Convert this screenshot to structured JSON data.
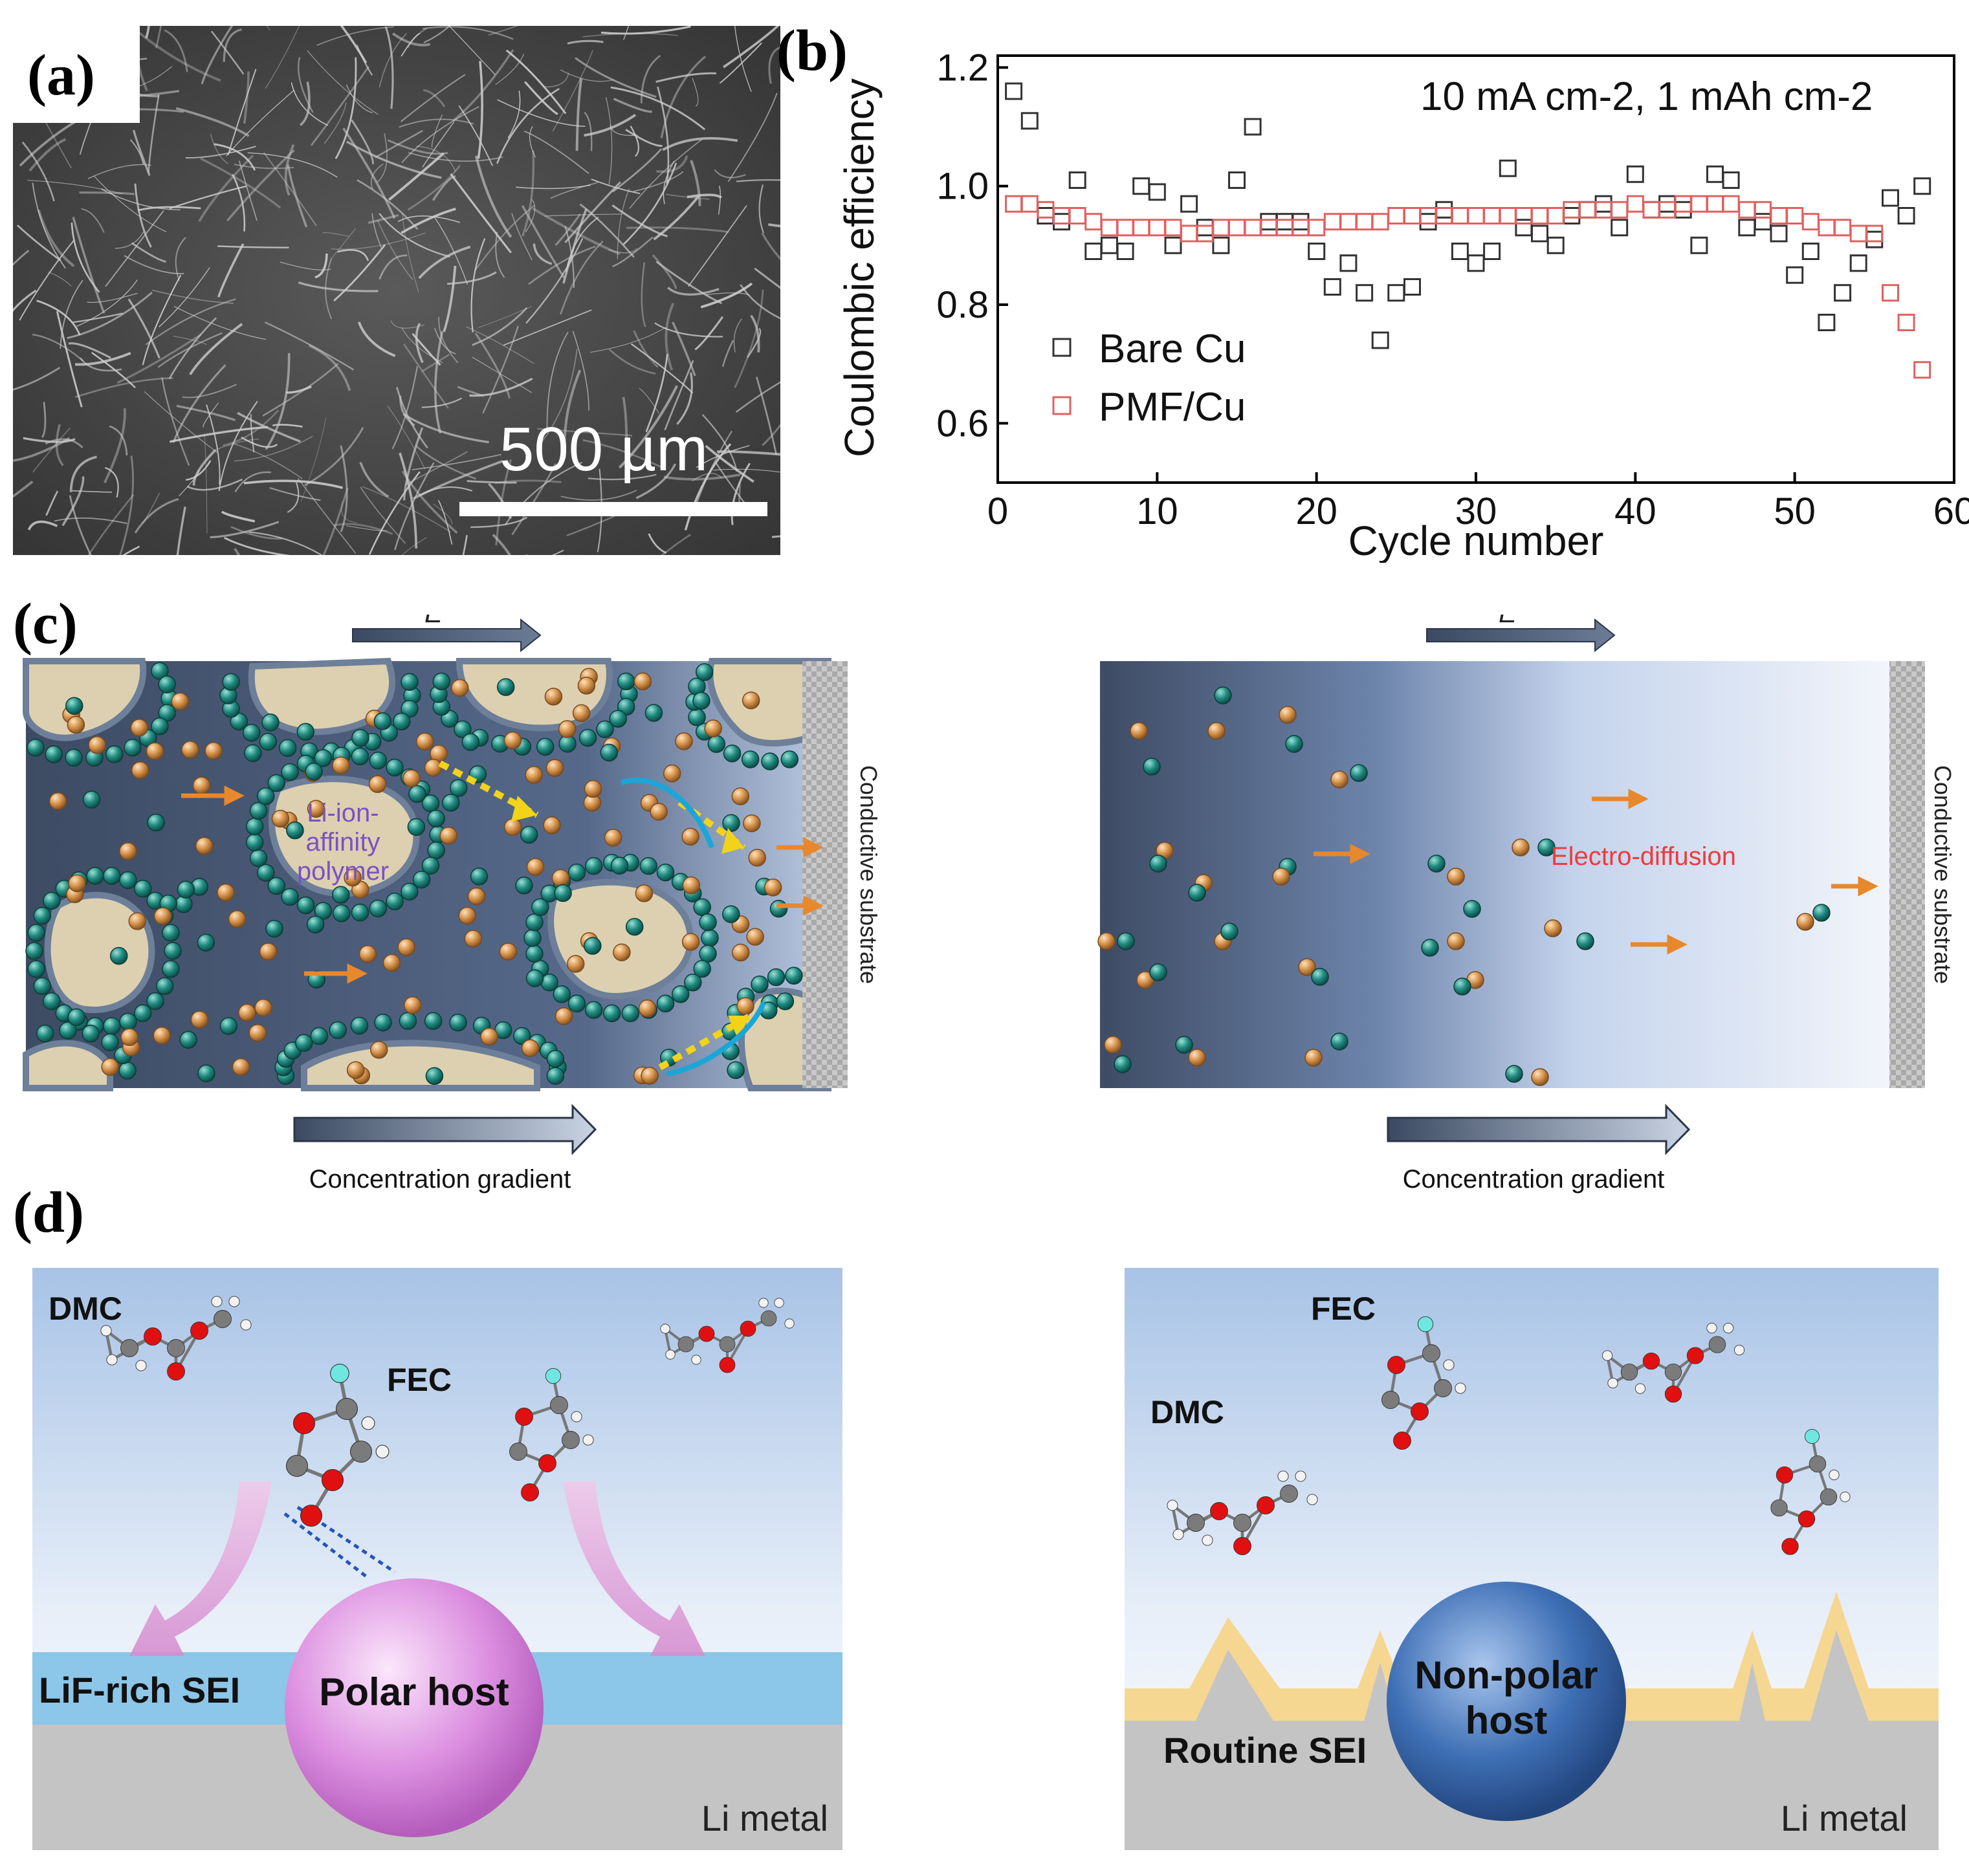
{
  "panel_labels": {
    "a": "(a)",
    "b": "(b)",
    "c": "(c)",
    "d": "(d)"
  },
  "panel_a": {
    "scale_bar_text": "500 µm"
  },
  "panel_b": {
    "condition_label": "10 mA cm-2, 1 mAh cm-2",
    "ylabel": "Coulombic efficiency",
    "xlabel": "Cycle number",
    "legend": [
      "Bare Cu",
      "PMF/Cu"
    ]
  },
  "chart_data": {
    "type": "scatter",
    "title": "10 mA cm-2, 1 mAh cm-2",
    "xlabel": "Cycle number",
    "ylabel": "Coulombic efficiency",
    "xlim": [
      0,
      60
    ],
    "ylim": [
      0.5,
      1.22
    ],
    "xticks": [
      0,
      10,
      20,
      30,
      40,
      50,
      60
    ],
    "yticks": [
      0.6,
      0.8,
      1.0,
      1.2
    ],
    "ytick_labels": [
      "0.6",
      "0.8",
      "1.0",
      "1.2"
    ],
    "legend_position": "bottom-left",
    "series": [
      {
        "name": "Bare Cu",
        "color": "#333333",
        "x": [
          1,
          2,
          3,
          4,
          5,
          6,
          7,
          8,
          9,
          10,
          11,
          12,
          13,
          14,
          15,
          16,
          17,
          18,
          19,
          20,
          21,
          22,
          23,
          24,
          25,
          26,
          27,
          28,
          29,
          30,
          31,
          32,
          33,
          34,
          35,
          36,
          37,
          38,
          39,
          40,
          41,
          42,
          43,
          44,
          45,
          46,
          47,
          48,
          49,
          50,
          51,
          52,
          53,
          54,
          55,
          56,
          57,
          58
        ],
        "y": [
          1.16,
          1.11,
          0.95,
          0.94,
          1.01,
          0.89,
          0.9,
          0.89,
          1.0,
          0.99,
          0.9,
          0.97,
          0.93,
          0.9,
          1.01,
          1.1,
          0.94,
          0.94,
          0.94,
          0.89,
          0.83,
          0.87,
          0.82,
          0.74,
          0.82,
          0.83,
          0.94,
          0.96,
          0.89,
          0.87,
          0.89,
          1.03,
          0.93,
          0.92,
          0.9,
          0.95,
          0.96,
          0.97,
          0.93,
          1.02,
          0.96,
          0.97,
          0.96,
          0.9,
          1.02,
          1.01,
          0.93,
          0.94,
          0.92,
          0.85,
          0.89,
          0.77,
          0.82,
          0.87,
          0.91,
          0.98,
          0.95,
          1.0
        ]
      },
      {
        "name": "PMF/Cu",
        "color": "#e06060",
        "x": [
          1,
          2,
          3,
          4,
          5,
          6,
          7,
          8,
          9,
          10,
          11,
          12,
          13,
          14,
          15,
          16,
          17,
          18,
          19,
          20,
          21,
          22,
          23,
          24,
          25,
          26,
          27,
          28,
          29,
          30,
          31,
          32,
          33,
          34,
          35,
          36,
          37,
          38,
          39,
          40,
          41,
          42,
          43,
          44,
          45,
          46,
          47,
          48,
          49,
          50,
          51,
          52,
          53,
          54,
          55,
          56,
          57,
          58
        ],
        "y": [
          0.97,
          0.97,
          0.96,
          0.95,
          0.95,
          0.94,
          0.93,
          0.93,
          0.93,
          0.93,
          0.93,
          0.92,
          0.92,
          0.93,
          0.93,
          0.93,
          0.93,
          0.93,
          0.93,
          0.93,
          0.94,
          0.94,
          0.94,
          0.94,
          0.95,
          0.95,
          0.95,
          0.95,
          0.95,
          0.95,
          0.95,
          0.95,
          0.95,
          0.95,
          0.95,
          0.96,
          0.96,
          0.96,
          0.96,
          0.97,
          0.96,
          0.96,
          0.97,
          0.97,
          0.97,
          0.97,
          0.96,
          0.96,
          0.95,
          0.95,
          0.94,
          0.93,
          0.93,
          0.92,
          0.92,
          0.82,
          0.77,
          0.69
        ]
      }
    ]
  },
  "panel_c": {
    "left": {
      "field_label": "E",
      "polymer_label": [
        "Li-ion-",
        "affinity",
        "polymer"
      ],
      "substrate_label": "Conductive substrate",
      "gradient_label": "Concentration gradient"
    },
    "right": {
      "field_label": "E",
      "diffusion_label": "Electro-diffusion",
      "substrate_label": "Conductive substrate",
      "gradient_label": "Concentration gradient"
    }
  },
  "panel_d": {
    "left": {
      "dmc_label": "DMC",
      "fec_label": "FEC",
      "sei_label": "LiF-rich SEI",
      "host_label": "Polar host",
      "metal_label": "Li metal"
    },
    "right": {
      "fec_label": "FEC",
      "dmc_label": "DMC",
      "sei_label": "Routine SEI",
      "host_label_line1": "Non-polar",
      "host_label_line2": "host",
      "metal_label": "Li metal"
    }
  },
  "colors": {
    "li_ion": "#1f8a80",
    "anion": "#d4914a",
    "polymer": "#dcd0b0",
    "electrolyte_dark": "#3b4a62",
    "sei_lif": "#8cc6e8",
    "sei_routine": "#f6d792",
    "polar_host": "#d27ed8",
    "nonpolar_host": "#3a6ab0",
    "li_metal": "#c4c4c4",
    "electro_diffusion_text": "#ee3b3b"
  }
}
